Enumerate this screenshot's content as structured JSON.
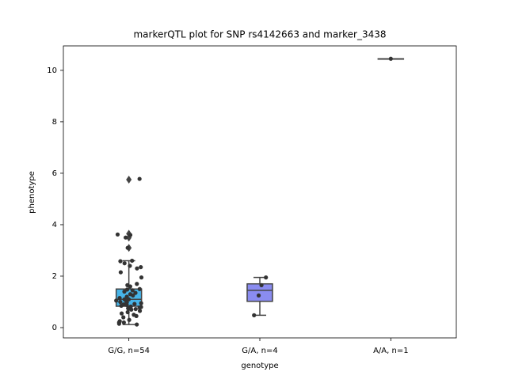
{
  "chart_data": {
    "type": "box",
    "title": "markerQTL plot for SNP rs4142663 and marker_3438",
    "x_label": "genotype",
    "y_label": "phenotype",
    "categories": [
      "G/G, n=54",
      "G/A, n=4",
      "A/A, n=1"
    ],
    "ylim": [
      -0.4,
      10.95
    ],
    "yticks": [
      0,
      2,
      4,
      6,
      8,
      10
    ],
    "boxes": [
      {
        "color": "#47b4e8",
        "whisker_low": 0.12,
        "q1": 0.83,
        "median": 1.1,
        "q3": 1.5,
        "whisker_high": 2.6,
        "outliers": [
          5.75,
          3.65,
          3.5,
          3.1
        ]
      },
      {
        "color": "#8a8cf0",
        "whisker_low": 0.48,
        "q1": 1.02,
        "median": 1.45,
        "q3": 1.7,
        "whisker_high": 1.95,
        "outliers": []
      },
      {
        "color": "#9d5fd0",
        "whisker_low": 10.45,
        "q1": 10.45,
        "median": 10.45,
        "q3": 10.45,
        "whisker_high": 10.45,
        "outliers": []
      }
    ],
    "point_color": "#333333",
    "points": [
      [
        5.78,
        3.62,
        3.6,
        3.5,
        3.1,
        2.6,
        2.58,
        2.5,
        2.4,
        2.35,
        2.3,
        2.15,
        1.95,
        1.7,
        1.65,
        1.5,
        1.48,
        1.45,
        1.4,
        1.35,
        1.3,
        1.25,
        1.2,
        1.15,
        1.1,
        1.1,
        1.05,
        1.0,
        0.98,
        0.95,
        0.92,
        0.9,
        0.88,
        0.85,
        0.82,
        0.8,
        0.78,
        0.75,
        0.72,
        0.7,
        0.65,
        0.6,
        0.55,
        0.5,
        0.45,
        0.4,
        0.3,
        0.25,
        0.2,
        0.2,
        0.15,
        0.12,
        1.6,
        1.0
      ],
      [
        1.95,
        1.65,
        1.25,
        0.48
      ],
      [
        10.45
      ]
    ]
  }
}
